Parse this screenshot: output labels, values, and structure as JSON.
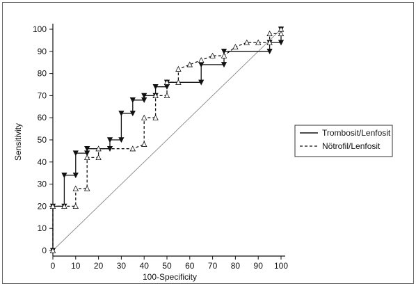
{
  "chart_data": {
    "type": "line",
    "title": "",
    "xlabel": "100-Specificity",
    "ylabel": "Sensitivity",
    "xlim": [
      0,
      100
    ],
    "ylim": [
      0,
      100
    ],
    "xticks": [
      0,
      10,
      20,
      30,
      40,
      50,
      60,
      70,
      80,
      90,
      100
    ],
    "yticks": [
      0,
      10,
      20,
      30,
      40,
      50,
      60,
      70,
      80,
      90,
      100
    ],
    "grid": false,
    "legend_position": "right",
    "reference_line": {
      "x": [
        0,
        100
      ],
      "y": [
        0,
        100
      ],
      "color": "#888888"
    },
    "series": [
      {
        "name": "Trombosit/Lenfosit",
        "line_style": "solid",
        "marker": "filled-triangle-down",
        "color": "#111111",
        "x": [
          0,
          0,
          5,
          5,
          10,
          10,
          15,
          15,
          25,
          25,
          30,
          30,
          35,
          35,
          40,
          40,
          45,
          45,
          50,
          50,
          65,
          65,
          75,
          75,
          95,
          95,
          100,
          100
        ],
        "y": [
          0,
          20,
          20,
          34,
          34,
          44,
          44,
          46,
          46,
          50,
          50,
          62,
          62,
          68,
          68,
          70,
          70,
          74,
          74,
          76,
          76,
          84,
          84,
          90,
          90,
          94,
          94,
          100
        ]
      },
      {
        "name": "Nötrofil/Lenfosit",
        "line_style": "dashed",
        "marker": "open-triangle-up",
        "color": "#111111",
        "x": [
          0,
          0,
          5,
          10,
          10,
          15,
          15,
          20,
          20,
          35,
          40,
          40,
          45,
          45,
          50,
          50,
          55,
          55,
          60,
          65,
          70,
          75,
          80,
          85,
          90,
          95,
          95,
          100,
          100
        ],
        "y": [
          0,
          20,
          20,
          20,
          28,
          28,
          42,
          42,
          46,
          46,
          48,
          60,
          60,
          70,
          70,
          76,
          76,
          82,
          84,
          86,
          88,
          88,
          92,
          94,
          94,
          94,
          98,
          98,
          100
        ]
      }
    ]
  }
}
